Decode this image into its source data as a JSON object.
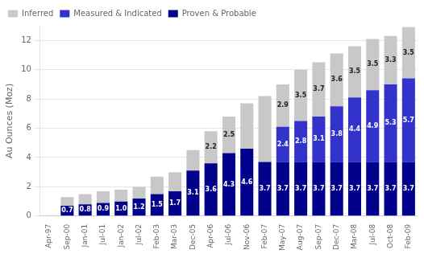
{
  "chart_data": {
    "type": "bar",
    "stacked": true,
    "ylabel": "Au Ounces (Moz)",
    "categories": [
      "Apr-97",
      "Sep-00",
      "Jan-01",
      "Jul-01",
      "Jan-02",
      "Jul-02",
      "Feb-03",
      "Mar-03",
      "Dec-05",
      "Apr-06",
      "Jul-06",
      "Nov-06",
      "Feb-07",
      "May-07",
      "Aug-07",
      "Sep-07",
      "Dec-07",
      "Mar-08",
      "Jul-08",
      "Oct-08",
      "Feb-09"
    ],
    "series": [
      {
        "name": "Proven & Probable",
        "color": "#00008B",
        "values": [
          0.0,
          0.7,
          0.8,
          0.9,
          1.0,
          1.2,
          1.5,
          1.7,
          3.1,
          3.6,
          4.3,
          4.6,
          3.7,
          3.7,
          3.7,
          3.7,
          3.7,
          3.7,
          3.7,
          3.7,
          3.7
        ],
        "value_labels": [
          null,
          "0.7",
          "0.8",
          "0.9",
          "1.0",
          "1.2",
          "1.5",
          "1.7",
          "3.1",
          "3.6",
          "4.3",
          "4.6",
          "3.7",
          "3.7",
          "3.7",
          "3.7",
          "3.7",
          "3.7",
          "3.7",
          "3.7",
          "3.7"
        ]
      },
      {
        "name": "Measured & Indicated",
        "color": "#3333CC",
        "values": [
          0.0,
          0.0,
          0.0,
          0.0,
          0.0,
          0.0,
          0.0,
          0.0,
          0.0,
          0.0,
          0.0,
          0.0,
          0.0,
          2.4,
          2.8,
          3.1,
          3.8,
          4.4,
          4.9,
          5.3,
          5.7
        ],
        "value_labels": [
          null,
          null,
          null,
          null,
          null,
          null,
          null,
          null,
          null,
          null,
          null,
          null,
          null,
          "2.4",
          "2.8",
          "3.1",
          "3.8",
          "4.4",
          "4.9",
          "5.3",
          "5.7"
        ]
      },
      {
        "name": "Inferred",
        "color": "#C8C8C8",
        "values": [
          0.0,
          0.6,
          0.7,
          0.8,
          0.8,
          0.8,
          1.2,
          1.3,
          1.4,
          2.2,
          2.5,
          3.1,
          4.5,
          2.9,
          3.5,
          3.7,
          3.6,
          3.5,
          3.5,
          3.3,
          3.5
        ],
        "value_labels": [
          null,
          null,
          null,
          null,
          null,
          null,
          null,
          null,
          null,
          "2.2",
          "2.5",
          null,
          null,
          "2.9",
          "3.5",
          "3.7",
          "3.6",
          "3.5",
          "3.5",
          "3.3",
          "3.5"
        ]
      }
    ],
    "ylim": [
      0,
      13
    ],
    "yticks": [
      0,
      2,
      4,
      6,
      8,
      10,
      12
    ],
    "grid": true,
    "legend": "upper left",
    "data_labels": true
  }
}
